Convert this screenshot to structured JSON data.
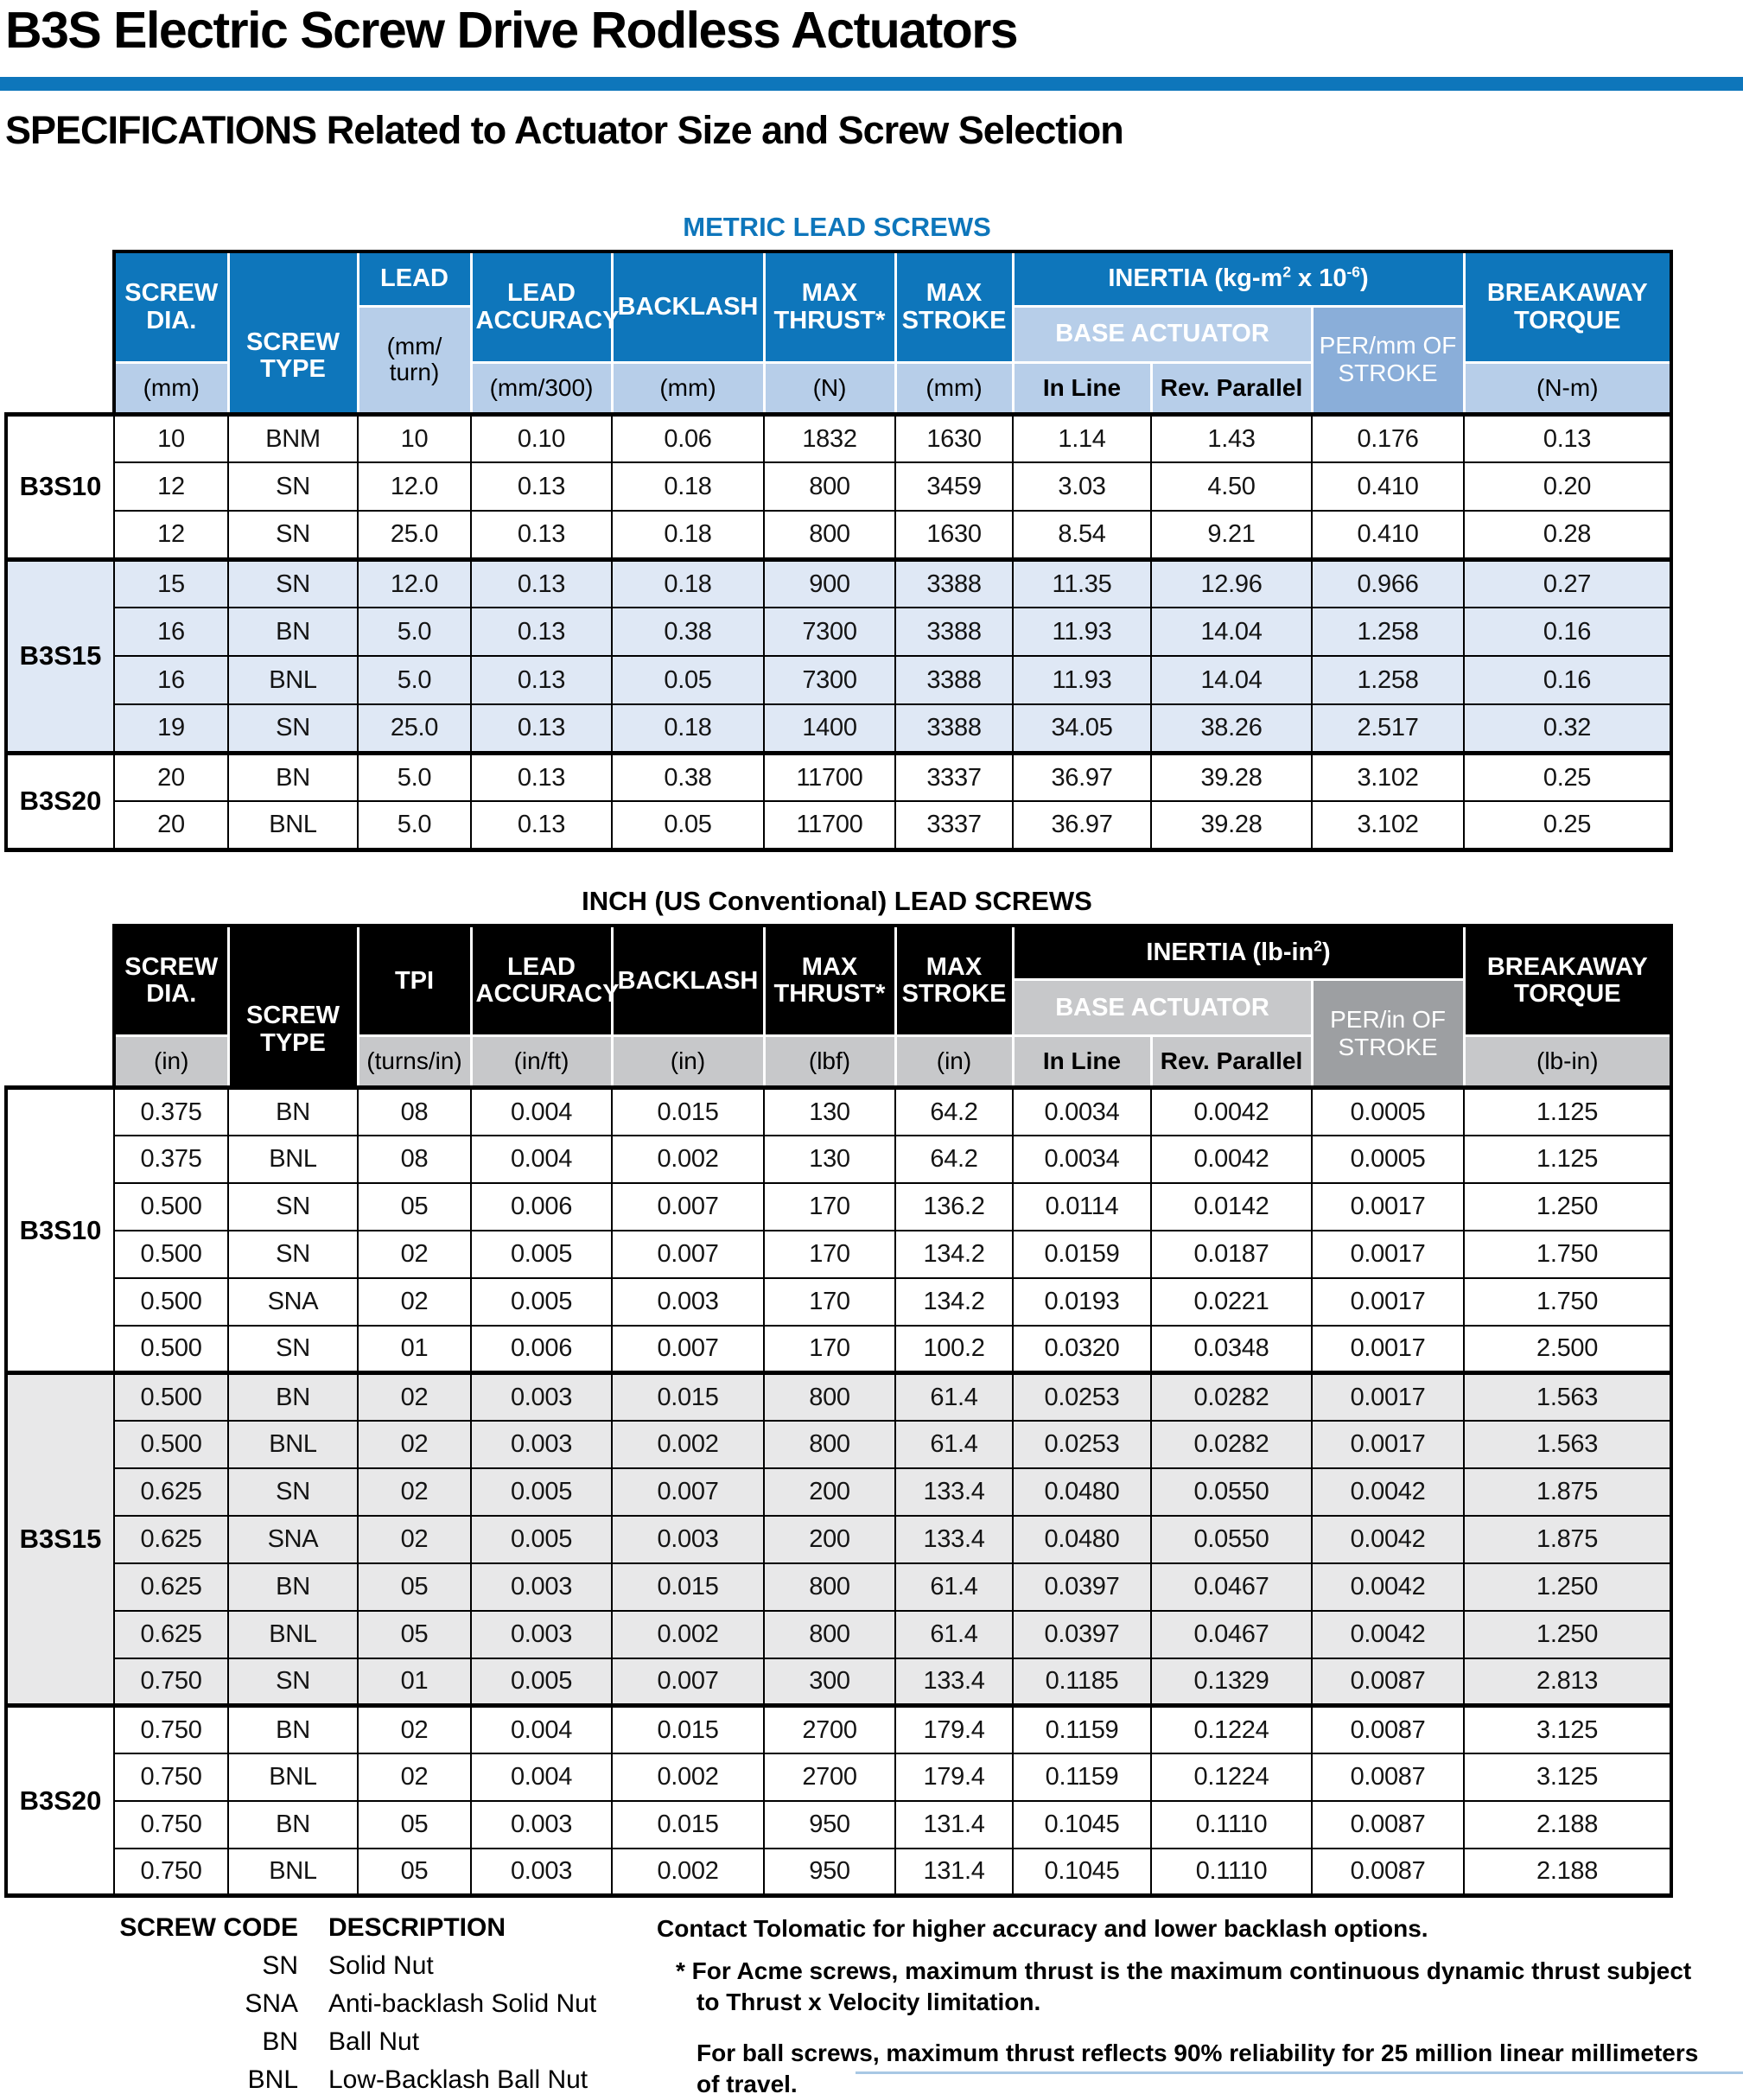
{
  "page": {
    "title": "B3S Electric Screw Drive Rodless Actuators",
    "subtitle": "SPECIFICATIONS Related to Actuator Size and Screw Selection"
  },
  "colors": {
    "brand_blue": "#0e76bb",
    "header_light_blue": "#b7cee9",
    "header_mid_blue": "#8aaed9",
    "row_tint_blue": "#dfe8f5",
    "header_black": "#000000",
    "header_light_gray": "#c7c8ca",
    "header_mid_gray": "#9d9fa2",
    "row_tint_gray": "#e8e8e9"
  },
  "metric_table": {
    "title": "METRIC LEAD SCREWS",
    "head": {
      "screw_dia": "SCREW\nDIA.",
      "screw_dia_unit": "(mm)",
      "screw_type": "SCREW\nTYPE",
      "lead": "LEAD",
      "lead_unit": "(mm/\nturn)",
      "lead_accuracy": "LEAD\nACCURACY",
      "lead_accuracy_unit": "(mm/300)",
      "backlash": "BACKLASH",
      "backlash_unit": "(mm)",
      "max_thrust": "MAX\nTHRUST*",
      "max_thrust_unit": "(N)",
      "max_stroke": "MAX\nSTROKE",
      "max_stroke_unit": "(mm)",
      "inertia_html": "INERTIA (kg-m<sup>2</sup> x 10<sup>-6</sup>)",
      "base_actuator": "BASE ACTUATOR",
      "in_line": "In Line",
      "rev_parallel": "Rev. Parallel",
      "per_stroke": "PER/mm OF\nSTROKE",
      "breakaway": "BREAKAWAY\nTORQUE",
      "breakaway_unit": "(N-m)"
    },
    "groups": [
      {
        "label": "B3S10",
        "rows": [
          [
            "10",
            "BNM",
            "10",
            "0.10",
            "0.06",
            "1832",
            "1630",
            "1.14",
            "1.43",
            "0.176",
            "0.13"
          ],
          [
            "12",
            "SN",
            "12.0",
            "0.13",
            "0.18",
            "800",
            "3459",
            "3.03",
            "4.50",
            "0.410",
            "0.20"
          ],
          [
            "12",
            "SN",
            "25.0",
            "0.13",
            "0.18",
            "800",
            "1630",
            "8.54",
            "9.21",
            "0.410",
            "0.28"
          ]
        ]
      },
      {
        "label": "B3S15",
        "rows": [
          [
            "15",
            "SN",
            "12.0",
            "0.13",
            "0.18",
            "900",
            "3388",
            "11.35",
            "12.96",
            "0.966",
            "0.27"
          ],
          [
            "16",
            "BN",
            "5.0",
            "0.13",
            "0.38",
            "7300",
            "3388",
            "11.93",
            "14.04",
            "1.258",
            "0.16"
          ],
          [
            "16",
            "BNL",
            "5.0",
            "0.13",
            "0.05",
            "7300",
            "3388",
            "11.93",
            "14.04",
            "1.258",
            "0.16"
          ],
          [
            "19",
            "SN",
            "25.0",
            "0.13",
            "0.18",
            "1400",
            "3388",
            "34.05",
            "38.26",
            "2.517",
            "0.32"
          ]
        ]
      },
      {
        "label": "B3S20",
        "rows": [
          [
            "20",
            "BN",
            "5.0",
            "0.13",
            "0.38",
            "11700",
            "3337",
            "36.97",
            "39.28",
            "3.102",
            "0.25"
          ],
          [
            "20",
            "BNL",
            "5.0",
            "0.13",
            "0.05",
            "11700",
            "3337",
            "36.97",
            "39.28",
            "3.102",
            "0.25"
          ]
        ]
      }
    ]
  },
  "inch_table": {
    "title": "INCH (US Conventional) LEAD SCREWS",
    "head": {
      "screw_dia": "SCREW\nDIA.",
      "screw_dia_unit": "(in)",
      "screw_type": "SCREW\nTYPE",
      "tpi": "TPI",
      "tpi_unit": "(turns/in)",
      "lead_accuracy": "LEAD\nACCURACY",
      "lead_accuracy_unit": "(in/ft)",
      "backlash": "BACKLASH",
      "backlash_unit": "(in)",
      "max_thrust": "MAX\nTHRUST*",
      "max_thrust_unit": "(lbf)",
      "max_stroke": "MAX\nSTROKE",
      "max_stroke_unit": "(in)",
      "inertia_html": "INERTIA (lb-in<sup>2</sup>)",
      "base_actuator": "BASE ACTUATOR",
      "in_line": "In Line",
      "rev_parallel": "Rev. Parallel",
      "per_stroke": "PER/in OF\nSTROKE",
      "breakaway": "BREAKAWAY\nTORQUE",
      "breakaway_unit": "(lb-in)"
    },
    "groups": [
      {
        "label": "B3S10",
        "rows": [
          [
            "0.375",
            "BN",
            "08",
            "0.004",
            "0.015",
            "130",
            "64.2",
            "0.0034",
            "0.0042",
            "0.0005",
            "1.125"
          ],
          [
            "0.375",
            "BNL",
            "08",
            "0.004",
            "0.002",
            "130",
            "64.2",
            "0.0034",
            "0.0042",
            "0.0005",
            "1.125"
          ],
          [
            "0.500",
            "SN",
            "05",
            "0.006",
            "0.007",
            "170",
            "136.2",
            "0.0114",
            "0.0142",
            "0.0017",
            "1.250"
          ],
          [
            "0.500",
            "SN",
            "02",
            "0.005",
            "0.007",
            "170",
            "134.2",
            "0.0159",
            "0.0187",
            "0.0017",
            "1.750"
          ],
          [
            "0.500",
            "SNA",
            "02",
            "0.005",
            "0.003",
            "170",
            "134.2",
            "0.0193",
            "0.0221",
            "0.0017",
            "1.750"
          ],
          [
            "0.500",
            "SN",
            "01",
            "0.006",
            "0.007",
            "170",
            "100.2",
            "0.0320",
            "0.0348",
            "0.0017",
            "2.500"
          ]
        ]
      },
      {
        "label": "B3S15",
        "rows": [
          [
            "0.500",
            "BN",
            "02",
            "0.003",
            "0.015",
            "800",
            "61.4",
            "0.0253",
            "0.0282",
            "0.0017",
            "1.563"
          ],
          [
            "0.500",
            "BNL",
            "02",
            "0.003",
            "0.002",
            "800",
            "61.4",
            "0.0253",
            "0.0282",
            "0.0017",
            "1.563"
          ],
          [
            "0.625",
            "SN",
            "02",
            "0.005",
            "0.007",
            "200",
            "133.4",
            "0.0480",
            "0.0550",
            "0.0042",
            "1.875"
          ],
          [
            "0.625",
            "SNA",
            "02",
            "0.005",
            "0.003",
            "200",
            "133.4",
            "0.0480",
            "0.0550",
            "0.0042",
            "1.875"
          ],
          [
            "0.625",
            "BN",
            "05",
            "0.003",
            "0.015",
            "800",
            "61.4",
            "0.0397",
            "0.0467",
            "0.0042",
            "1.250"
          ],
          [
            "0.625",
            "BNL",
            "05",
            "0.003",
            "0.002",
            "800",
            "61.4",
            "0.0397",
            "0.0467",
            "0.0042",
            "1.250"
          ],
          [
            "0.750",
            "SN",
            "01",
            "0.005",
            "0.007",
            "300",
            "133.4",
            "0.1185",
            "0.1329",
            "0.0087",
            "2.813"
          ]
        ]
      },
      {
        "label": "B3S20",
        "rows": [
          [
            "0.750",
            "BN",
            "02",
            "0.004",
            "0.015",
            "2700",
            "179.4",
            "0.1159",
            "0.1224",
            "0.0087",
            "3.125"
          ],
          [
            "0.750",
            "BNL",
            "02",
            "0.004",
            "0.002",
            "2700",
            "179.4",
            "0.1159",
            "0.1224",
            "0.0087",
            "3.125"
          ],
          [
            "0.750",
            "BN",
            "05",
            "0.003",
            "0.015",
            "950",
            "131.4",
            "0.1045",
            "0.1110",
            "0.0087",
            "2.188"
          ],
          [
            "0.750",
            "BNL",
            "05",
            "0.003",
            "0.002",
            "950",
            "131.4",
            "0.1045",
            "0.1110",
            "0.0087",
            "2.188"
          ]
        ]
      }
    ]
  },
  "legend": {
    "code_header": "SCREW CODE",
    "desc_header": "DESCRIPTION",
    "items": [
      {
        "code": "SN",
        "desc": "Solid Nut"
      },
      {
        "code": "SNA",
        "desc": "Anti-backlash Solid Nut"
      },
      {
        "code": "BN",
        "desc": "Ball Nut"
      },
      {
        "code": "BNL",
        "desc": "Low-Backlash Ball Nut"
      }
    ]
  },
  "notes": {
    "contact": "Contact Tolomatic for higher accuracy and lower backlash options.",
    "acme": "* For Acme screws, maximum thrust is the maximum continuous dynamic thrust subject to Thrust x Velocity limitation.",
    "ball": "For ball screws, maximum thrust reflects 90% reliability for 25 million linear millimeters of travel."
  }
}
